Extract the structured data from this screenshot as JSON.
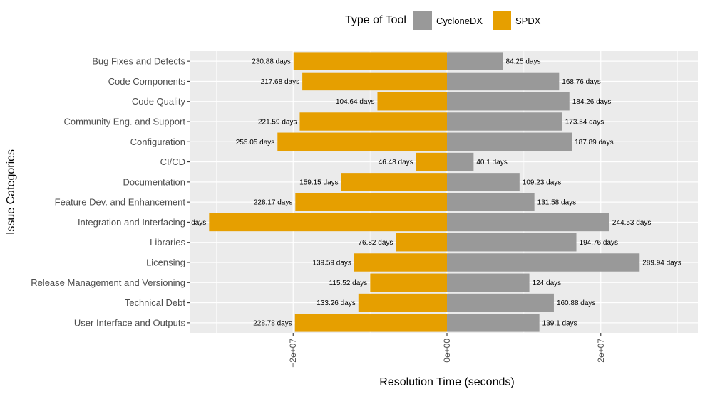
{
  "chart_data": {
    "type": "bar",
    "orientation": "horizontal-diverging",
    "xlabel": "Resolution Time (seconds)",
    "ylabel": "Issue Categories",
    "xlim": [
      -33000000.0,
      33000000.0
    ],
    "x_ticks": [
      {
        "value": -20000000.0,
        "label": "−2e+07"
      },
      {
        "value": 0,
        "label": "0e+00"
      },
      {
        "value": 20000000.0,
        "label": "2e+07"
      }
    ],
    "x_minor_gridlines": [
      -30000000.0,
      -10000000.0,
      10000000.0,
      30000000.0
    ],
    "grid": true,
    "legend": {
      "title": "Type of Tool",
      "position": "top",
      "entries": [
        {
          "name": "CycloneDX",
          "color": "#999999"
        },
        {
          "name": "SPDX",
          "color": "#E69F00"
        }
      ]
    },
    "categories": [
      "Bug Fixes and Defects",
      "Code Components",
      "Code Quality",
      "Community Eng. and Support",
      "Configuration",
      "CI/CD",
      "Documentation",
      "Feature Dev. and Enhancement",
      "Integration and Interfacing",
      "Libraries",
      "Licensing",
      "Release Management and Versioning",
      "Technical Debt",
      "User Interface and Outputs"
    ],
    "series": [
      {
        "name": "CycloneDX",
        "color": "#999999",
        "direction": "positive",
        "values_days": [
          84.25,
          168.76,
          184.26,
          173.54,
          187.89,
          40.1,
          109.23,
          131.58,
          244.53,
          194.76,
          289.94,
          124,
          160.88,
          139.1
        ],
        "labels": [
          "84.25 days",
          "168.76 days",
          "184.26 days",
          "173.54 days",
          "187.89 days",
          "40.1 days",
          "109.23 days",
          "131.58 days",
          "244.53 days",
          "194.76 days",
          "289.94 days",
          "124 days",
          "160.88 days",
          "139.1 days"
        ]
      },
      {
        "name": "SPDX",
        "color": "#E69F00",
        "direction": "negative",
        "values_days": [
          230.88,
          217.68,
          104.64,
          221.59,
          255.05,
          46.48,
          159.15,
          228.17,
          358,
          76.82,
          139.59,
          115.52,
          133.26,
          228.78
        ],
        "labels": [
          "230.88 days",
          "217.68 days",
          "104.64 days",
          "221.59 days",
          "255.05 days",
          "46.48 days",
          "159.15 days",
          "228.17 days",
          "days",
          "76.82 days",
          "139.59 days",
          "115.52 days",
          "133.26 days",
          "228.78 days"
        ]
      }
    ]
  }
}
